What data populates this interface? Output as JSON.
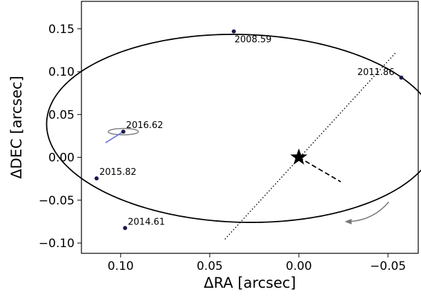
{
  "chart_data": {
    "type": "scatter",
    "title": "",
    "xlabel": "ΔRA [arcsec]",
    "ylabel": "ΔDEC [arcsec]",
    "xlim": [
      0.122,
      -0.067
    ],
    "ylim": [
      -0.112,
      0.182
    ],
    "x_reversed": true,
    "grid": false,
    "x_ticks": [
      {
        "value": 0.1,
        "label": "0.10"
      },
      {
        "value": 0.05,
        "label": "0.05"
      },
      {
        "value": 0.0,
        "label": "0.00"
      },
      {
        "value": -0.05,
        "label": "−0.05"
      }
    ],
    "y_ticks": [
      {
        "value": 0.15,
        "label": "0.15"
      },
      {
        "value": 0.1,
        "label": "0.10"
      },
      {
        "value": 0.05,
        "label": "0.05"
      },
      {
        "value": 0.0,
        "label": "0.00"
      },
      {
        "value": -0.05,
        "label": "−0.05"
      },
      {
        "value": -0.1,
        "label": "−0.10"
      }
    ],
    "orbit": {
      "center": [
        0.0318,
        0.0338
      ],
      "semi_axes": [
        0.1122,
        0.1072
      ],
      "angle_deg": 44.9,
      "color": "#000000"
    },
    "star": {
      "x": 0.0,
      "y": 0.0,
      "color": "#000000"
    },
    "points": [
      {
        "label": "2008.59",
        "x": 0.0365,
        "y": 0.147,
        "label_side": "below-right"
      },
      {
        "label": "2011.86",
        "x": -0.0575,
        "y": 0.093,
        "label_side": "left"
      },
      {
        "label": "2016.62",
        "x": 0.0985,
        "y": 0.03,
        "label_side": "above-right"
      },
      {
        "label": "2015.82",
        "x": 0.1135,
        "y": -0.0245,
        "label_side": "above-right"
      },
      {
        "label": "2014.61",
        "x": 0.0975,
        "y": -0.0825,
        "label_side": "above-right"
      }
    ],
    "point_color": "#1a1a4e",
    "error_ellipse": {
      "center": [
        0.0985,
        0.03
      ],
      "rx": 0.0085,
      "ry": 0.0037,
      "color": "#808080"
    },
    "offset_line": {
      "from": [
        0.0985,
        0.03
      ],
      "to": [
        0.1085,
        0.017
      ],
      "color": "#6a6ae0"
    },
    "line_of_nodes": {
      "from": [
        0.0415,
        -0.0955
      ],
      "to": [
        -0.0545,
        0.1225
      ],
      "style": "dotted"
    },
    "periastron_line": {
      "from": [
        0.0,
        0.0
      ],
      "to": [
        -0.0235,
        -0.0285
      ],
      "style": "dashed"
    },
    "direction_arrow": {
      "from": [
        -0.0505,
        -0.052
      ],
      "ctrl": [
        -0.041,
        -0.075
      ],
      "to": [
        -0.0265,
        -0.075
      ],
      "color": "#808080"
    }
  }
}
